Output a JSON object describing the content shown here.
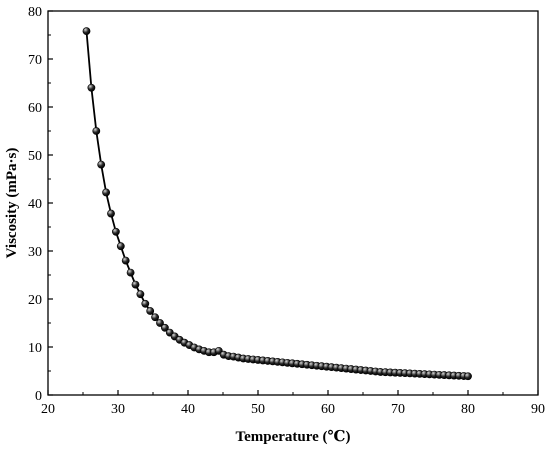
{
  "chart_data": {
    "type": "line",
    "title": "",
    "xlabel": "Temperature (℃)",
    "ylabel": "Viscosity (mPa·s)",
    "xlim": [
      20,
      90
    ],
    "ylim": [
      0,
      80
    ],
    "xticks": [
      "20",
      "30",
      "40",
      "50",
      "60",
      "70",
      "80",
      "90"
    ],
    "yticks": [
      "0",
      "10",
      "20",
      "30",
      "40",
      "50",
      "60",
      "70",
      "80"
    ],
    "grid": false,
    "legend": "none",
    "colors": {
      "line": "#000000",
      "marker_fill": "#2a2a2a",
      "marker_highlight": "#d9d9d9"
    },
    "series": [
      {
        "x": [
          25.5,
          26.2,
          26.9,
          27.6,
          28.3,
          29.0,
          29.7,
          30.4,
          31.1,
          31.8,
          32.5,
          33.2,
          33.9,
          34.6,
          35.3,
          36.0,
          36.7,
          37.4,
          38.1,
          38.8,
          39.5,
          40.2,
          40.9,
          41.6,
          42.3,
          43.0,
          43.7,
          44.4,
          45.1,
          45.8,
          46.5,
          47.2,
          47.9,
          48.6,
          49.3,
          50.0,
          50.7,
          51.4,
          52.1,
          52.8,
          53.5,
          54.2,
          54.9,
          55.6,
          56.3,
          57.0,
          57.7,
          58.4,
          59.1,
          59.8,
          60.5,
          61.2,
          61.9,
          62.6,
          63.3,
          64.0,
          64.7,
          65.4,
          66.1,
          66.8,
          67.5,
          68.2,
          68.9,
          69.6,
          70.3,
          71.0,
          71.7,
          72.4,
          73.1,
          73.8,
          74.5,
          75.2,
          75.9,
          76.6,
          77.3,
          78.0,
          78.7,
          79.4,
          80.0
        ],
        "values": [
          75.8,
          64.0,
          55.0,
          48.0,
          42.2,
          37.8,
          34.0,
          31.0,
          28.0,
          25.5,
          23.0,
          21.0,
          19.0,
          17.5,
          16.2,
          15.0,
          14.0,
          13.0,
          12.2,
          11.5,
          10.9,
          10.4,
          9.9,
          9.5,
          9.2,
          8.9,
          8.9,
          9.2,
          8.4,
          8.1,
          8.0,
          7.8,
          7.6,
          7.5,
          7.4,
          7.3,
          7.2,
          7.1,
          7.0,
          6.9,
          6.8,
          6.7,
          6.6,
          6.5,
          6.4,
          6.3,
          6.2,
          6.1,
          6.0,
          5.9,
          5.8,
          5.7,
          5.6,
          5.5,
          5.4,
          5.3,
          5.2,
          5.1,
          5.0,
          4.9,
          4.8,
          4.75,
          4.7,
          4.65,
          4.6,
          4.55,
          4.5,
          4.45,
          4.4,
          4.35,
          4.3,
          4.25,
          4.2,
          4.15,
          4.1,
          4.05,
          4.0,
          3.95,
          3.9
        ]
      }
    ]
  }
}
